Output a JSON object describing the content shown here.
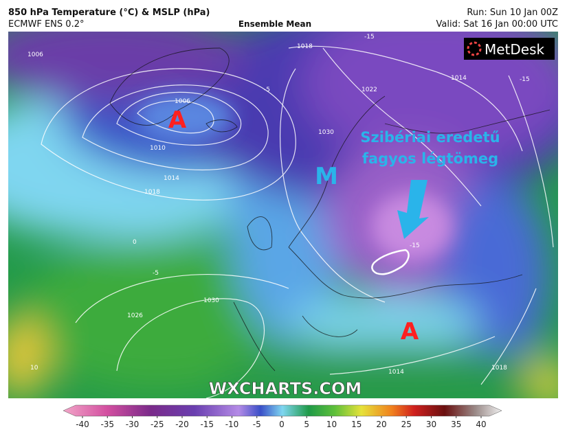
{
  "header": {
    "title": "850 hPa Temperature (°C) & MSLP (hPa)",
    "model": "ECMWF ENS 0.2°",
    "subtitle": "Ensemble Mean",
    "run": "Run: Sun 10 Jan 00Z",
    "valid": "Valid: Sat 16 Jan 00:00 UTC"
  },
  "logo": "MetDesk",
  "watermark": "WXCHARTS.COM",
  "annotations": {
    "high_1": "A",
    "low": "M",
    "high_2": "A",
    "note_line_1": "Szibériai eredetű",
    "note_line_2": "fagyos légtömeg"
  },
  "contour_labels": [
    "1006",
    "1006",
    "1010",
    "1014",
    "1018",
    "1018",
    "1022",
    "1014",
    "1030",
    "1026",
    "1030",
    "1014",
    "1018",
    "-15",
    "-15",
    "-5",
    "0",
    "-5",
    "10",
    "-15"
  ],
  "colorbar_ticks": [
    -40,
    -35,
    -30,
    -25,
    -20,
    -15,
    -10,
    -5,
    0,
    5,
    10,
    15,
    20,
    25,
    30,
    35,
    40
  ]
}
